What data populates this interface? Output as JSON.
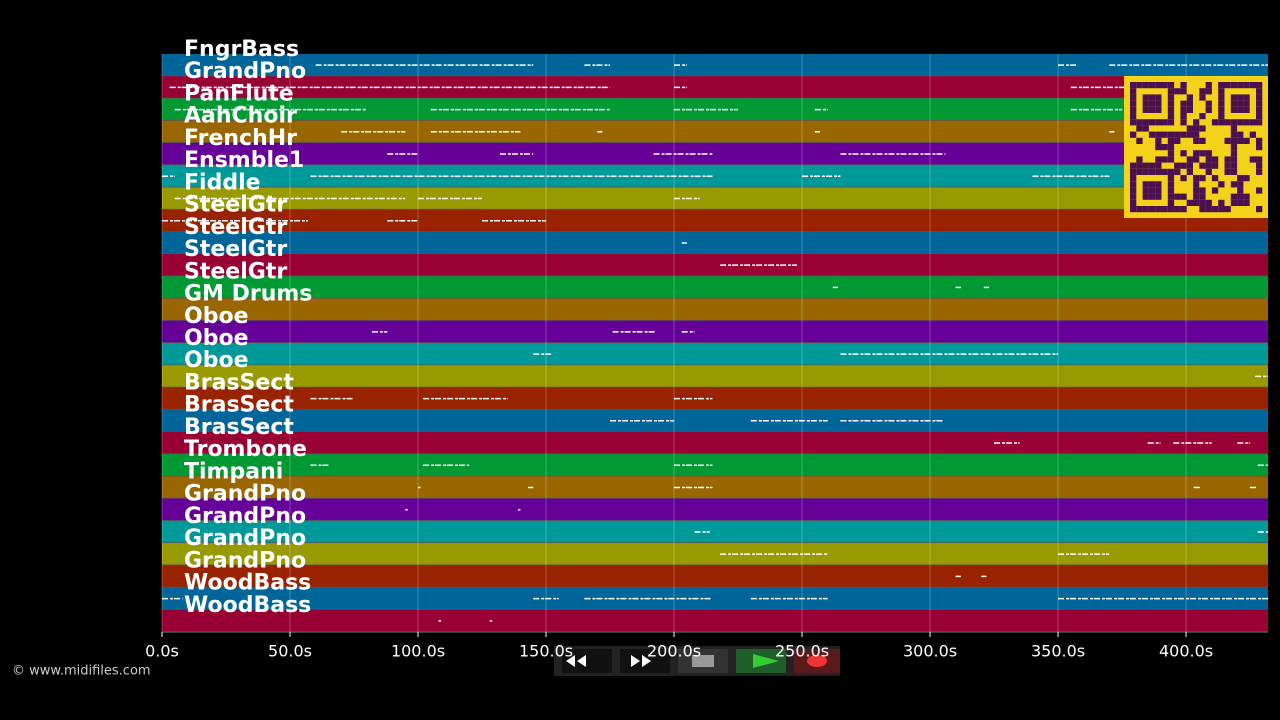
{
  "chart_data": {
    "type": "piano-roll",
    "categories": [
      "FngrBass",
      "GrandPno",
      "PanFlute",
      "AahChoir",
      "FrenchHr",
      "Ensmble1",
      "Fiddle",
      "SteelGtr",
      "SteelGtr",
      "SteelGtr",
      "SteelGtr",
      "GM Drums",
      "Oboe",
      "Oboe",
      "Oboe",
      "BrasSect",
      "BrasSect",
      "BrasSect",
      "Trombone",
      "Timpani",
      "GrandPno",
      "GrandPno",
      "GrandPno",
      "GrandPno",
      "WoodBass",
      "WoodBass"
    ],
    "lane_colors": [
      "#006699",
      "#990033",
      "#009933",
      "#996600",
      "#660099",
      "#009999",
      "#999900",
      "#992200"
    ],
    "segments": [
      [
        [
          60,
          145
        ],
        [
          165,
          175
        ],
        [
          200,
          205
        ],
        [
          350,
          357
        ],
        [
          370,
          432
        ]
      ],
      [
        [
          3,
          175
        ],
        [
          200,
          205
        ],
        [
          355,
          432
        ]
      ],
      [
        [
          5,
          80
        ],
        [
          105,
          175
        ],
        [
          200,
          225
        ],
        [
          255,
          260
        ],
        [
          355,
          375
        ]
      ],
      [
        [
          70,
          95
        ],
        [
          105,
          140
        ],
        [
          170,
          172
        ],
        [
          255,
          257
        ],
        [
          370,
          372
        ]
      ],
      [
        [
          88,
          100
        ],
        [
          132,
          145
        ],
        [
          192,
          215
        ],
        [
          265,
          306
        ]
      ],
      [
        [
          0,
          5
        ],
        [
          58,
          215
        ],
        [
          250,
          265
        ],
        [
          340,
          370
        ]
      ],
      [
        [
          5,
          95
        ],
        [
          100,
          125
        ],
        [
          200,
          210
        ]
      ],
      [
        [
          0,
          57
        ],
        [
          88,
          100
        ],
        [
          125,
          150
        ]
      ],
      [
        [
          203,
          205
        ]
      ],
      [
        [
          218,
          248
        ]
      ],
      [
        [
          262,
          264
        ],
        [
          310,
          312
        ],
        [
          321,
          323
        ]
      ],
      [],
      [
        [
          82,
          88
        ],
        [
          176,
          193
        ],
        [
          203,
          208
        ]
      ],
      [
        [
          145,
          152
        ],
        [
          265,
          350
        ]
      ],
      [
        [
          427,
          432
        ]
      ],
      [
        [
          58,
          75
        ],
        [
          102,
          135
        ],
        [
          200,
          215
        ]
      ],
      [
        [
          175,
          200
        ],
        [
          230,
          260
        ],
        [
          265,
          305
        ]
      ],
      [
        [
          325,
          335
        ],
        [
          385,
          390
        ],
        [
          395,
          410
        ],
        [
          420,
          425
        ]
      ],
      [
        [
          58,
          65
        ],
        [
          102,
          120
        ],
        [
          200,
          215
        ],
        [
          428,
          432
        ]
      ],
      [
        [
          100,
          101
        ],
        [
          143,
          145
        ],
        [
          200,
          215
        ],
        [
          403,
          406
        ],
        [
          425,
          428
        ]
      ],
      [
        [
          95,
          96
        ],
        [
          139,
          140
        ]
      ],
      [
        [
          208,
          214
        ],
        [
          428,
          432
        ]
      ],
      [
        [
          218,
          260
        ],
        [
          350,
          370
        ]
      ],
      [
        [
          310,
          312
        ],
        [
          320,
          322
        ]
      ],
      [
        [
          0,
          8
        ],
        [
          145,
          155
        ],
        [
          165,
          215
        ],
        [
          230,
          260
        ],
        [
          350,
          432
        ]
      ],
      [
        [
          108,
          109
        ],
        [
          128,
          129
        ]
      ]
    ],
    "xlim": [
      0,
      432
    ],
    "xticks": [
      {
        "value": 0,
        "label": "0.0s"
      },
      {
        "value": 50,
        "label": "50.0s"
      },
      {
        "value": 100,
        "label": "100.0s"
      },
      {
        "value": 150,
        "label": "150.0s"
      },
      {
        "value": 200,
        "label": "200.0s"
      },
      {
        "value": 250,
        "label": "250.0s"
      },
      {
        "value": 300,
        "label": "300.0s"
      },
      {
        "value": 350,
        "label": "350.0s"
      },
      {
        "value": 400,
        "label": "400.0s"
      }
    ],
    "grid": true
  },
  "footer": "© www.midifiles.com"
}
